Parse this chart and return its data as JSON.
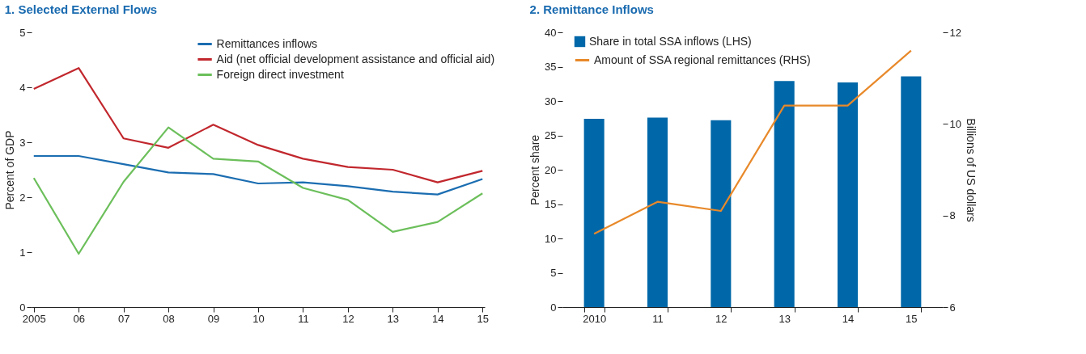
{
  "chart_data": [
    {
      "type": "line",
      "title": "1. Selected External Flows",
      "ylabel": "Percent of GDP",
      "categories": [
        "2005",
        "06",
        "07",
        "08",
        "09",
        "10",
        "11",
        "12",
        "13",
        "14",
        "15"
      ],
      "series": [
        {
          "name": "Remittances inflows",
          "color": "#1b6db1",
          "values": [
            2.75,
            2.75,
            2.6,
            2.45,
            2.42,
            2.25,
            2.27,
            2.2,
            2.1,
            2.05,
            2.33
          ]
        },
        {
          "name": "Aid (net official development assistance and official aid)",
          "color": "#c1272d",
          "values": [
            3.97,
            4.35,
            3.07,
            2.9,
            3.32,
            2.95,
            2.7,
            2.55,
            2.5,
            2.27,
            2.48
          ]
        },
        {
          "name": "Foreign direct investment",
          "color": "#6cbf5b",
          "values": [
            2.35,
            0.97,
            2.28,
            3.27,
            2.7,
            2.65,
            2.17,
            1.95,
            1.37,
            1.55,
            2.07
          ]
        }
      ],
      "ylim": [
        0,
        5
      ],
      "yticks": [
        0,
        1,
        2,
        3,
        4,
        5
      ],
      "grid": false,
      "legend": "top right"
    },
    {
      "type": "bar",
      "title": "2. Remittance Inflows",
      "ylabel": "Percent share",
      "y2label": "Billions of US dollars",
      "categories": [
        "2010",
        "11",
        "12",
        "13",
        "14",
        "15"
      ],
      "series": [
        {
          "name": "Share in total SSA inflows (LHS)",
          "color": "#0067a8",
          "values": [
            27.4,
            27.6,
            27.2,
            32.9,
            32.7,
            33.6
          ]
        },
        {
          "name": "Amount of SSA regional remittances (RHS)",
          "type": "line",
          "axis": "y2",
          "color": "#e8892a",
          "values": [
            7.6,
            8.3,
            8.1,
            10.4,
            10.4,
            11.6
          ]
        }
      ],
      "ylim": [
        0,
        40
      ],
      "yticks": [
        0,
        5,
        10,
        15,
        20,
        25,
        30,
        35,
        40
      ],
      "y2lim": [
        6,
        12
      ],
      "y2ticks": [
        6,
        8,
        10,
        12
      ],
      "grid": false,
      "legend": "top left"
    }
  ]
}
